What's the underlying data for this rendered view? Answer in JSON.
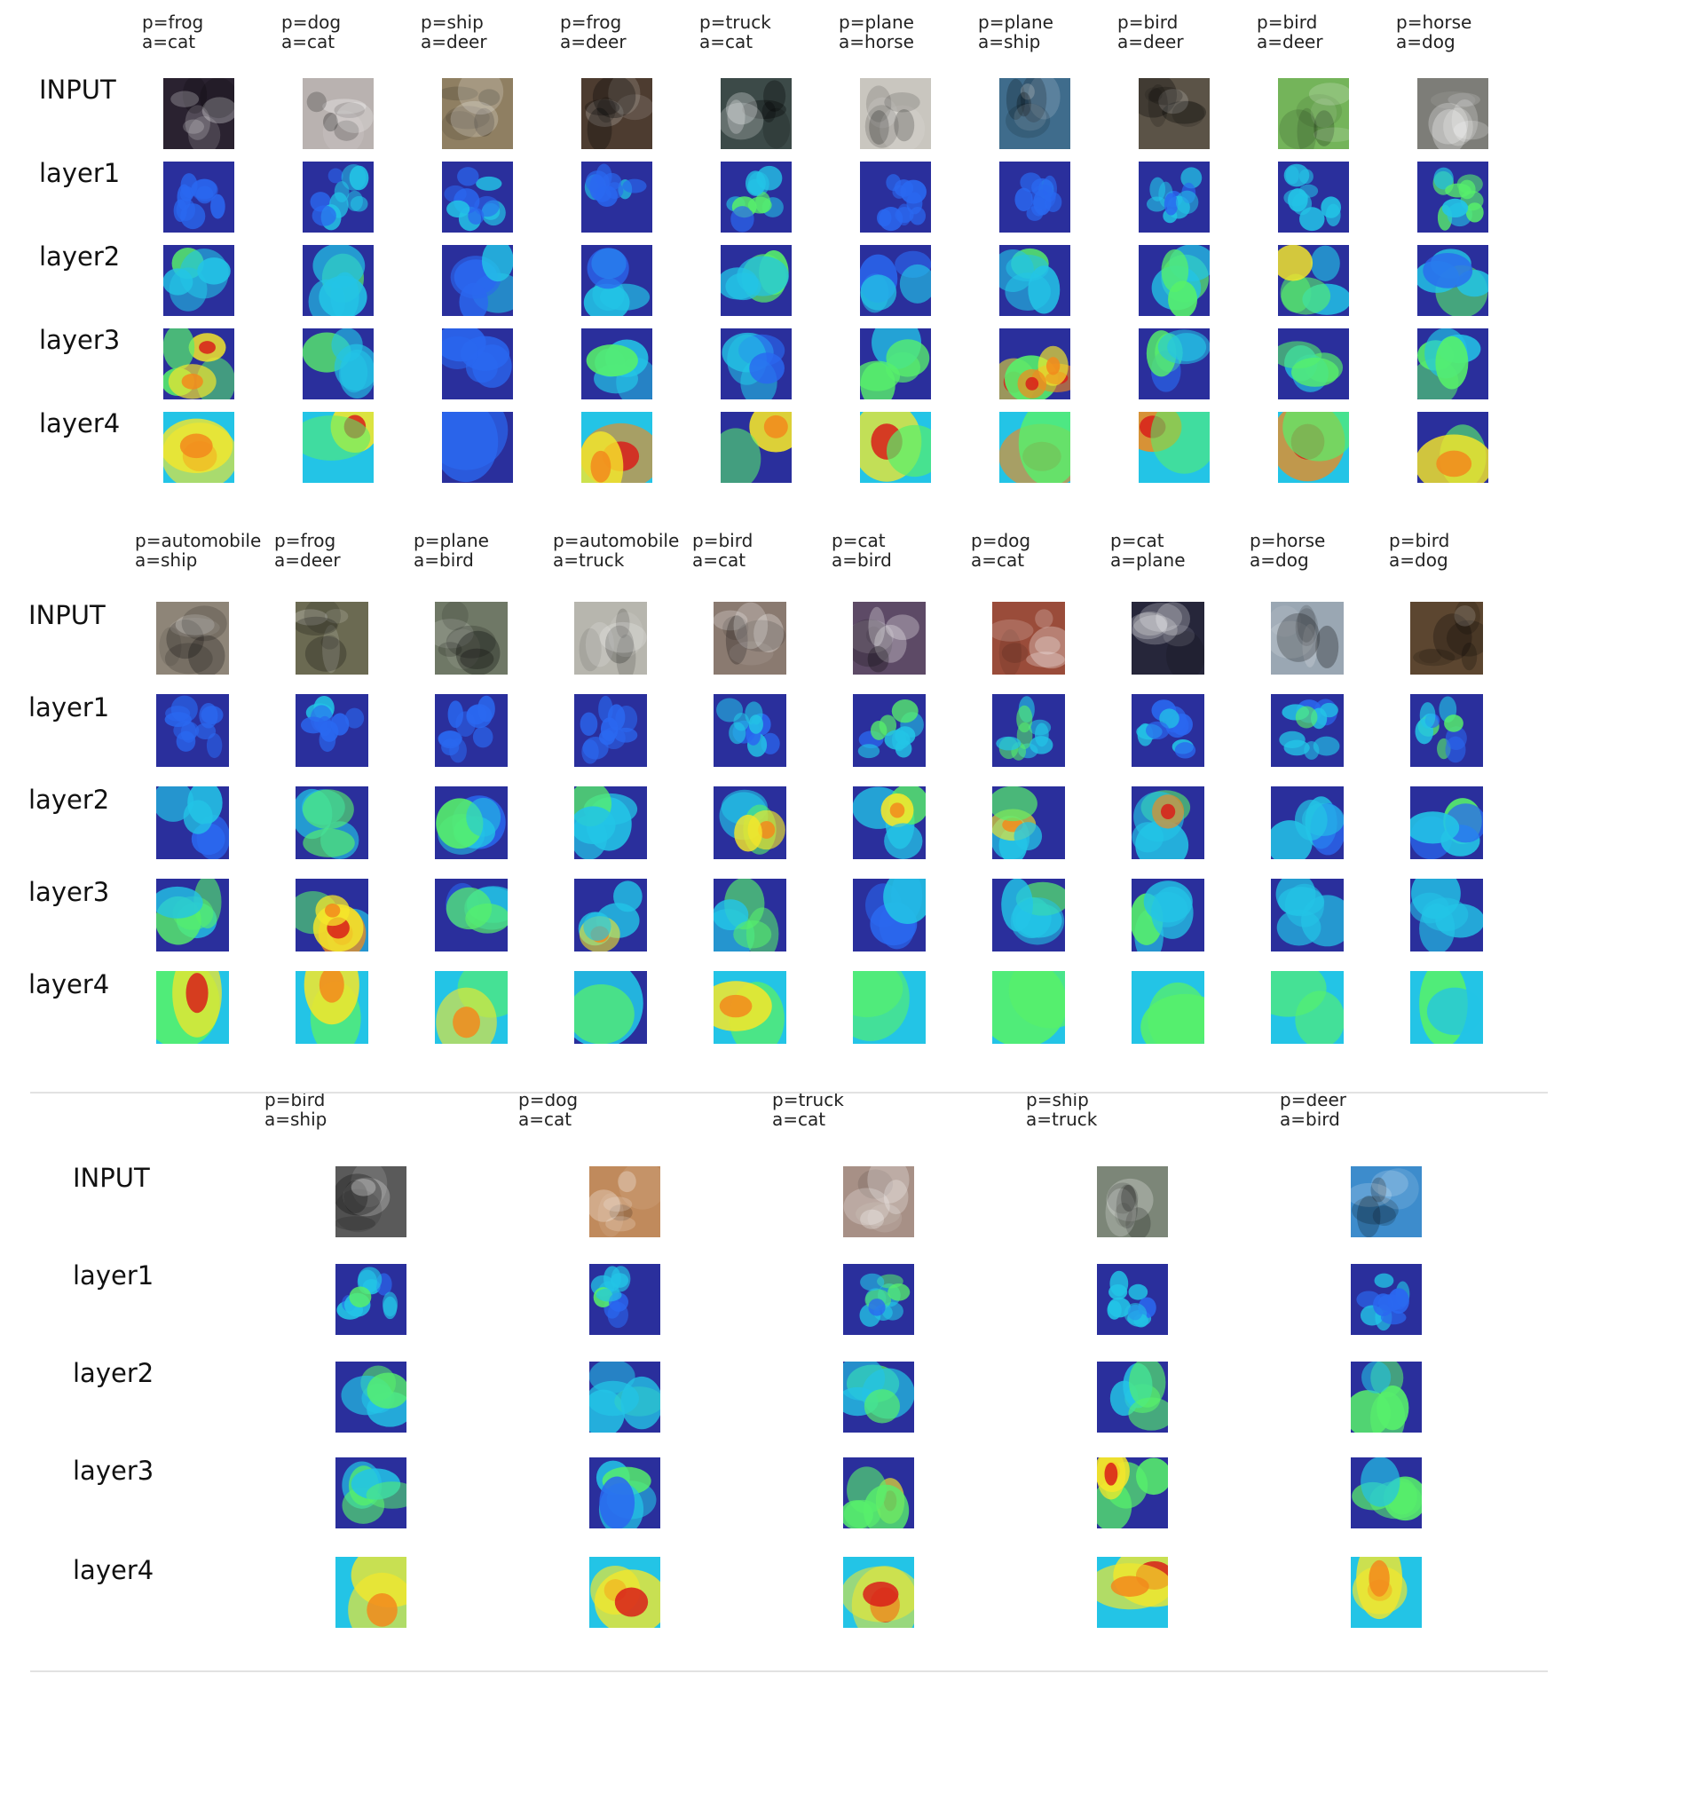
{
  "row_labels": [
    "INPUT",
    "layer1",
    "layer2",
    "layer3",
    "layer4"
  ],
  "heatmap_colors": [
    "#1b1fae",
    "#2a68f0",
    "#23c4e6",
    "#57f06b",
    "#f5e72a",
    "#f28a1c",
    "#d81e1a"
  ],
  "panels": [
    {
      "columns": [
        {
          "p": "p=frog",
          "a": "a=cat",
          "input_color": "#2a2230",
          "heat": [
            0.25,
            0.55,
            0.65,
            0.85
          ]
        },
        {
          "p": "p=dog",
          "a": "a=cat",
          "input_color": "#b9b2b0",
          "heat": [
            0.35,
            0.55,
            0.55,
            0.75
          ]
        },
        {
          "p": "p=ship",
          "a": "a=deer",
          "input_color": "#8f7f62",
          "heat": [
            0.3,
            0.3,
            0.15,
            0.15
          ]
        },
        {
          "p": "p=frog",
          "a": "a=deer",
          "input_color": "#4d3c30",
          "heat": [
            0.3,
            0.45,
            0.45,
            0.95
          ]
        },
        {
          "p": "p=truck",
          "a": "a=cat",
          "input_color": "#3c4a48",
          "heat": [
            0.45,
            0.5,
            0.35,
            0.7
          ]
        },
        {
          "p": "p=plane",
          "a": "a=horse",
          "input_color": "#c9c6bf",
          "heat": [
            0.2,
            0.3,
            0.6,
            0.8
          ]
        },
        {
          "p": "p=plane",
          "a": "a=ship",
          "input_color": "#3f6c8c",
          "heat": [
            0.3,
            0.5,
            0.75,
            0.85
          ]
        },
        {
          "p": "p=bird",
          "a": "a=deer",
          "input_color": "#5b5347",
          "heat": [
            0.4,
            0.55,
            0.45,
            0.9
          ]
        },
        {
          "p": "p=bird",
          "a": "a=deer",
          "input_color": "#74b45a",
          "heat": [
            0.35,
            0.6,
            0.5,
            0.85
          ]
        },
        {
          "p": "p=horse",
          "a": "a=dog",
          "input_color": "#7d7d78",
          "heat": [
            0.55,
            0.4,
            0.45,
            0.6
          ]
        }
      ]
    },
    {
      "columns": [
        {
          "p": "p=automobile",
          "a": "a=ship",
          "input_color": "#8e8578",
          "heat": [
            0.2,
            0.4,
            0.55,
            0.85
          ]
        },
        {
          "p": "p=frog",
          "a": "a=deer",
          "input_color": "#6b6a52",
          "heat": [
            0.3,
            0.5,
            0.7,
            0.85
          ]
        },
        {
          "p": "p=plane",
          "a": "a=bird",
          "input_color": "#6f7866",
          "heat": [
            0.25,
            0.45,
            0.45,
            0.85
          ]
        },
        {
          "p": "p=automobile",
          "a": "a=truck",
          "input_color": "#b7b6ae",
          "heat": [
            0.2,
            0.5,
            0.6,
            0.7
          ]
        },
        {
          "p": "p=bird",
          "a": "a=cat",
          "input_color": "#8a7a70",
          "heat": [
            0.35,
            0.6,
            0.65,
            0.95
          ]
        },
        {
          "p": "p=cat",
          "a": "a=bird",
          "input_color": "#5d4a66",
          "heat": [
            0.45,
            0.6,
            0.25,
            0.8
          ]
        },
        {
          "p": "p=dog",
          "a": "a=cat",
          "input_color": "#9a4c3a",
          "heat": [
            0.5,
            0.6,
            0.5,
            0.8
          ]
        },
        {
          "p": "p=cat",
          "a": "a=plane",
          "input_color": "#26263a",
          "heat": [
            0.3,
            0.75,
            0.45,
            0.85
          ]
        },
        {
          "p": "p=horse",
          "a": "a=dog",
          "input_color": "#9aa7b3",
          "heat": [
            0.45,
            0.45,
            0.6,
            0.85
          ]
        },
        {
          "p": "p=bird",
          "a": "a=dog",
          "input_color": "#5c4630",
          "heat": [
            0.45,
            0.4,
            0.55,
            0.8
          ]
        }
      ]
    },
    {
      "columns": [
        {
          "p": "p=bird",
          "a": "a=ship",
          "input_color": "#5a5a5a",
          "heat": [
            0.4,
            0.45,
            0.55,
            0.8
          ]
        },
        {
          "p": "p=dog",
          "a": "a=cat",
          "input_color": "#c08a5c",
          "heat": [
            0.45,
            0.55,
            0.45,
            0.9
          ]
        },
        {
          "p": "p=truck",
          "a": "a=cat",
          "input_color": "#a79086",
          "heat": [
            0.45,
            0.55,
            0.65,
            0.9
          ]
        },
        {
          "p": "p=ship",
          "a": "a=truck",
          "input_color": "#7c8678",
          "heat": [
            0.4,
            0.55,
            0.75,
            0.9
          ]
        },
        {
          "p": "p=deer",
          "a": "a=bird",
          "input_color": "#3d8ccc",
          "heat": [
            0.35,
            0.65,
            0.65,
            0.9
          ]
        }
      ]
    }
  ]
}
